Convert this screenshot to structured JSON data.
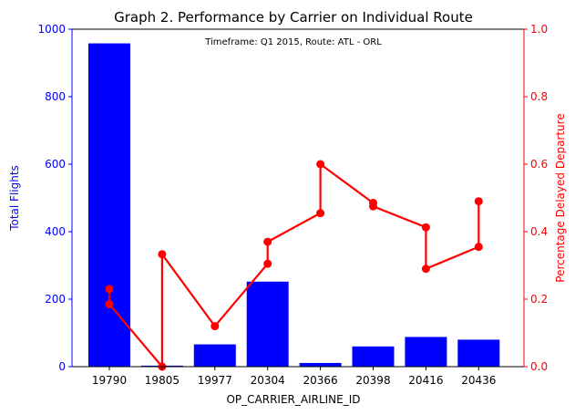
{
  "chart_data": {
    "type": "bar",
    "title": "Graph 2. Performance by Carrier on Individual Route",
    "subtitle": "Timeframe: Q1 2015, Route: ATL - ORL",
    "xlabel": "OP_CARRIER_AIRLINE_ID",
    "ylabel": "Total Flights",
    "ylabel_right": "Percentage Delayed Departure",
    "categories": [
      "19790",
      "19805",
      "19977",
      "20304",
      "20366",
      "20398",
      "20416",
      "20436"
    ],
    "ylim": [
      0,
      1000
    ],
    "ylim_right": [
      0,
      1.0
    ],
    "yticks": [
      "0",
      "200",
      "400",
      "600",
      "800",
      "1000"
    ],
    "yticks_right": [
      "0.0",
      "0.2",
      "0.4",
      "0.6",
      "0.8",
      "1.0"
    ],
    "grid": false,
    "series": [
      {
        "name": "Total Flights",
        "type": "bar",
        "axis": "left",
        "color": "#0000ff",
        "values": [
          958,
          3,
          66,
          252,
          11,
          60,
          88,
          80
        ]
      },
      {
        "name": "Percentage Delayed Departure",
        "type": "line",
        "axis": "right",
        "color": "#ff0000",
        "points": [
          {
            "x": "19790",
            "y": 0.23
          },
          {
            "x": "19790",
            "y": 0.185
          },
          {
            "x": "19805",
            "y": 0.0
          },
          {
            "x": "19805",
            "y": 0.333
          },
          {
            "x": "19977",
            "y": 0.12
          },
          {
            "x": "20304",
            "y": 0.305
          },
          {
            "x": "20304",
            "y": 0.37
          },
          {
            "x": "20366",
            "y": 0.455
          },
          {
            "x": "20366",
            "y": 0.6
          },
          {
            "x": "20398",
            "y": 0.485
          },
          {
            "x": "20398",
            "y": 0.475
          },
          {
            "x": "20416",
            "y": 0.413
          },
          {
            "x": "20416",
            "y": 0.29
          },
          {
            "x": "20436",
            "y": 0.355
          },
          {
            "x": "20436",
            "y": 0.49
          }
        ]
      }
    ]
  }
}
